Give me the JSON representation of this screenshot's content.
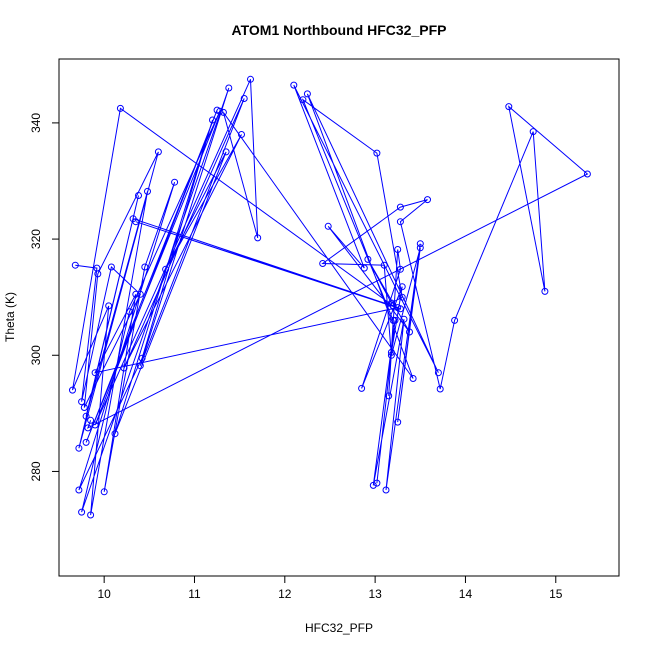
{
  "chart_data": {
    "type": "scatter",
    "title": "ATOM1 Northbound HFC32_PFP",
    "xlabel": "HFC32_PFP",
    "ylabel": "Theta (K)",
    "xlim": [
      9.5,
      15.7
    ],
    "ylim": [
      262,
      351
    ],
    "xticks": [
      10,
      11,
      12,
      13,
      14,
      15
    ],
    "yticks": [
      280,
      300,
      320,
      340
    ],
    "grid": false,
    "legend": "none",
    "color": "#0000ff",
    "series": [
      {
        "connected": true,
        "points": [
          {
            "x": 9.68,
            "y": 315.5
          },
          {
            "x": 9.92,
            "y": 315.0
          },
          {
            "x": 9.75,
            "y": 292.0
          },
          {
            "x": 10.08,
            "y": 315.2
          },
          {
            "x": 10.4,
            "y": 310.5
          },
          {
            "x": 9.78,
            "y": 291.0
          },
          {
            "x": 9.93,
            "y": 314.0
          },
          {
            "x": 10.6,
            "y": 335.0
          },
          {
            "x": 9.72,
            "y": 284.0
          },
          {
            "x": 10.38,
            "y": 327.5
          },
          {
            "x": 9.8,
            "y": 289.5
          },
          {
            "x": 10.48,
            "y": 328.2
          },
          {
            "x": 9.85,
            "y": 272.5
          },
          {
            "x": 10.05,
            "y": 308.5
          },
          {
            "x": 9.65,
            "y": 294.0
          },
          {
            "x": 10.18,
            "y": 342.5
          },
          {
            "x": 13.2,
            "y": 308.5
          },
          {
            "x": 10.35,
            "y": 323.0
          },
          {
            "x": 13.28,
            "y": 308.0
          },
          {
            "x": 10.32,
            "y": 323.5
          },
          {
            "x": 13.25,
            "y": 308.2
          },
          {
            "x": 9.9,
            "y": 297.0
          },
          {
            "x": 10.35,
            "y": 310.5
          },
          {
            "x": 10.0,
            "y": 276.5
          },
          {
            "x": 10.45,
            "y": 315.2
          },
          {
            "x": 10.78,
            "y": 329.8
          },
          {
            "x": 9.72,
            "y": 276.8
          },
          {
            "x": 10.42,
            "y": 299.5
          },
          {
            "x": 11.2,
            "y": 340.5
          },
          {
            "x": 10.12,
            "y": 286.5
          },
          {
            "x": 11.35,
            "y": 335.0
          },
          {
            "x": 10.68,
            "y": 314.8
          },
          {
            "x": 11.52,
            "y": 338.0
          },
          {
            "x": 10.22,
            "y": 297.8
          },
          {
            "x": 11.55,
            "y": 344.2
          },
          {
            "x": 10.4,
            "y": 298.2
          },
          {
            "x": 11.38,
            "y": 346.0
          },
          {
            "x": 9.75,
            "y": 273.0
          },
          {
            "x": 10.28,
            "y": 307.5
          },
          {
            "x": 11.28,
            "y": 342.0
          },
          {
            "x": 9.8,
            "y": 285.0
          },
          {
            "x": 11.25,
            "y": 342.2
          },
          {
            "x": 9.9,
            "y": 288.0
          },
          {
            "x": 11.62,
            "y": 347.5
          },
          {
            "x": 11.7,
            "y": 320.2
          },
          {
            "x": 11.32,
            "y": 341.8
          },
          {
            "x": 13.42,
            "y": 296.0
          },
          {
            "x": 12.25,
            "y": 345.0
          },
          {
            "x": 13.7,
            "y": 297.0
          },
          {
            "x": 12.1,
            "y": 346.5
          },
          {
            "x": 12.88,
            "y": 315.0
          },
          {
            "x": 12.48,
            "y": 322.2
          },
          {
            "x": 13.38,
            "y": 304.0
          },
          {
            "x": 12.92,
            "y": 316.5
          },
          {
            "x": 13.18,
            "y": 309.0
          },
          {
            "x": 13.3,
            "y": 310.0
          },
          {
            "x": 13.02,
            "y": 334.8
          },
          {
            "x": 12.2,
            "y": 344.0
          },
          {
            "x": 13.2,
            "y": 306.0
          },
          {
            "x": 13.15,
            "y": 293.0
          },
          {
            "x": 13.25,
            "y": 318.2
          },
          {
            "x": 13.28,
            "y": 314.8
          },
          {
            "x": 12.85,
            "y": 294.3
          },
          {
            "x": 13.3,
            "y": 311.8
          },
          {
            "x": 13.18,
            "y": 300.5
          },
          {
            "x": 13.02,
            "y": 278.0
          },
          {
            "x": 13.22,
            "y": 306.0
          },
          {
            "x": 12.98,
            "y": 277.6
          },
          {
            "x": 13.32,
            "y": 306.2
          },
          {
            "x": 13.12,
            "y": 276.8
          },
          {
            "x": 13.5,
            "y": 319.2
          },
          {
            "x": 13.25,
            "y": 288.5
          },
          {
            "x": 13.5,
            "y": 318.5
          },
          {
            "x": 13.18,
            "y": 300.0
          },
          {
            "x": 13.1,
            "y": 315.5
          },
          {
            "x": 12.42,
            "y": 315.8
          },
          {
            "x": 13.28,
            "y": 325.5
          },
          {
            "x": 13.58,
            "y": 326.8
          },
          {
            "x": 13.28,
            "y": 323.0
          },
          {
            "x": 13.72,
            "y": 294.2
          },
          {
            "x": 13.88,
            "y": 306.0
          },
          {
            "x": 14.75,
            "y": 338.5
          },
          {
            "x": 14.88,
            "y": 311.0
          },
          {
            "x": 14.48,
            "y": 342.8
          },
          {
            "x": 15.35,
            "y": 331.2
          },
          {
            "x": 9.82,
            "y": 287.5
          },
          {
            "x": 9.85,
            "y": 288.8
          }
        ]
      }
    ]
  }
}
